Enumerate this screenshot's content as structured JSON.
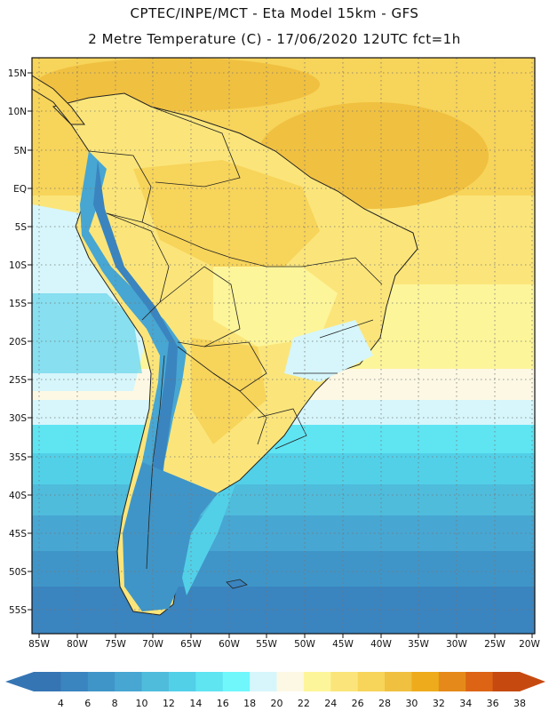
{
  "header": {
    "line1": "CPTEC/INPE/MCT -  Eta Model 15km - GFS",
    "line2": "2 Metre Temperature (C) - 17/06/2020 12UTC fct=1h"
  },
  "map": {
    "region": "South America",
    "lon_range": [
      -86,
      -20
    ],
    "lat_range": [
      -58,
      17
    ],
    "lat_ticks": [
      "15N",
      "10N",
      "5N",
      "EQ",
      "5S",
      "10S",
      "15S",
      "20S",
      "25S",
      "30S",
      "35S",
      "40S",
      "45S",
      "50S",
      "55S"
    ],
    "lon_ticks": [
      "85W",
      "80W",
      "75W",
      "70W",
      "65W",
      "60W",
      "55W",
      "50W",
      "45W",
      "40W",
      "35W",
      "30W",
      "25W",
      "20W"
    ],
    "grid": "dotted"
  },
  "colorbar": {
    "labels": [
      "4",
      "6",
      "8",
      "10",
      "12",
      "14",
      "16",
      "18",
      "20",
      "22",
      "24",
      "26",
      "28",
      "30",
      "32",
      "34",
      "36",
      "38"
    ],
    "colors": [
      "#3575b4",
      "#3a84bf",
      "#3f95c8",
      "#47a6d2",
      "#4fbcdc",
      "#52d0e8",
      "#5fe4f2",
      "#6ff7fb",
      "#d6f6fb",
      "#fdf8e4",
      "#fdf59a",
      "#fbe57a",
      "#f7d45a",
      "#f0c040",
      "#eeab1c",
      "#e58a1a",
      "#dc6414",
      "#c64a10"
    ]
  }
}
